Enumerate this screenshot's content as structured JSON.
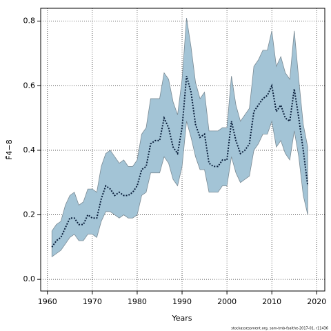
{
  "chart_data": {
    "type": "band-line",
    "xlabel": "Years",
    "ylabel": "F̄4−8",
    "footnote": "stockassessment.org, sam-tmb-fsaithe-2017-01, r11436",
    "x": [
      1961,
      1962,
      1963,
      1964,
      1965,
      1966,
      1967,
      1968,
      1969,
      1970,
      1971,
      1972,
      1973,
      1974,
      1975,
      1976,
      1977,
      1978,
      1979,
      1980,
      1981,
      1982,
      1983,
      1984,
      1985,
      1986,
      1987,
      1988,
      1989,
      1990,
      1991,
      1992,
      1993,
      1994,
      1995,
      1996,
      1997,
      1998,
      1999,
      2000,
      2001,
      2002,
      2003,
      2004,
      2005,
      2006,
      2007,
      2008,
      2009,
      2010,
      2011,
      2012,
      2013,
      2014,
      2015,
      2016,
      2017,
      2018
    ],
    "values": [
      0.1,
      0.12,
      0.13,
      0.16,
      0.19,
      0.19,
      0.17,
      0.17,
      0.2,
      0.19,
      0.19,
      0.25,
      0.29,
      0.28,
      0.26,
      0.27,
      0.26,
      0.26,
      0.27,
      0.29,
      0.34,
      0.35,
      0.42,
      0.43,
      0.43,
      0.5,
      0.47,
      0.41,
      0.39,
      0.47,
      0.63,
      0.58,
      0.48,
      0.44,
      0.45,
      0.36,
      0.35,
      0.35,
      0.37,
      0.37,
      0.49,
      0.43,
      0.39,
      0.4,
      0.42,
      0.52,
      0.54,
      0.56,
      0.57,
      0.6,
      0.52,
      0.54,
      0.5,
      0.49,
      0.59,
      0.5,
      0.4,
      0.29
    ],
    "upper": [
      0.15,
      0.17,
      0.18,
      0.23,
      0.26,
      0.27,
      0.23,
      0.24,
      0.28,
      0.28,
      0.27,
      0.35,
      0.39,
      0.4,
      0.38,
      0.36,
      0.37,
      0.35,
      0.35,
      0.37,
      0.45,
      0.47,
      0.56,
      0.56,
      0.56,
      0.64,
      0.62,
      0.55,
      0.51,
      0.62,
      0.81,
      0.72,
      0.61,
      0.56,
      0.58,
      0.46,
      0.46,
      0.46,
      0.47,
      0.47,
      0.63,
      0.54,
      0.49,
      0.51,
      0.53,
      0.66,
      0.68,
      0.71,
      0.71,
      0.77,
      0.66,
      0.69,
      0.64,
      0.62,
      0.77,
      0.62,
      0.48,
      0.41
    ],
    "lower": [
      0.07,
      0.08,
      0.09,
      0.11,
      0.13,
      0.14,
      0.12,
      0.12,
      0.14,
      0.14,
      0.13,
      0.18,
      0.21,
      0.21,
      0.2,
      0.19,
      0.2,
      0.19,
      0.19,
      0.2,
      0.26,
      0.27,
      0.33,
      0.33,
      0.33,
      0.38,
      0.36,
      0.31,
      0.29,
      0.35,
      0.49,
      0.44,
      0.38,
      0.34,
      0.34,
      0.27,
      0.27,
      0.27,
      0.29,
      0.29,
      0.38,
      0.33,
      0.3,
      0.31,
      0.32,
      0.4,
      0.42,
      0.45,
      0.45,
      0.49,
      0.41,
      0.43,
      0.39,
      0.37,
      0.46,
      0.38,
      0.26,
      0.2
    ],
    "color": "#0a1f3c",
    "band_color": "#a3c4d6",
    "xlim": [
      1958.5,
      2021.8
    ],
    "ylim": [
      -0.036,
      0.84
    ],
    "xticks": [
      1960,
      1970,
      1980,
      1990,
      2000,
      2010,
      2020
    ],
    "yticks": [
      {
        "value": 0,
        "label": "0.0"
      },
      0.2,
      0.4,
      0.6,
      0.8
    ],
    "grid": true
  }
}
